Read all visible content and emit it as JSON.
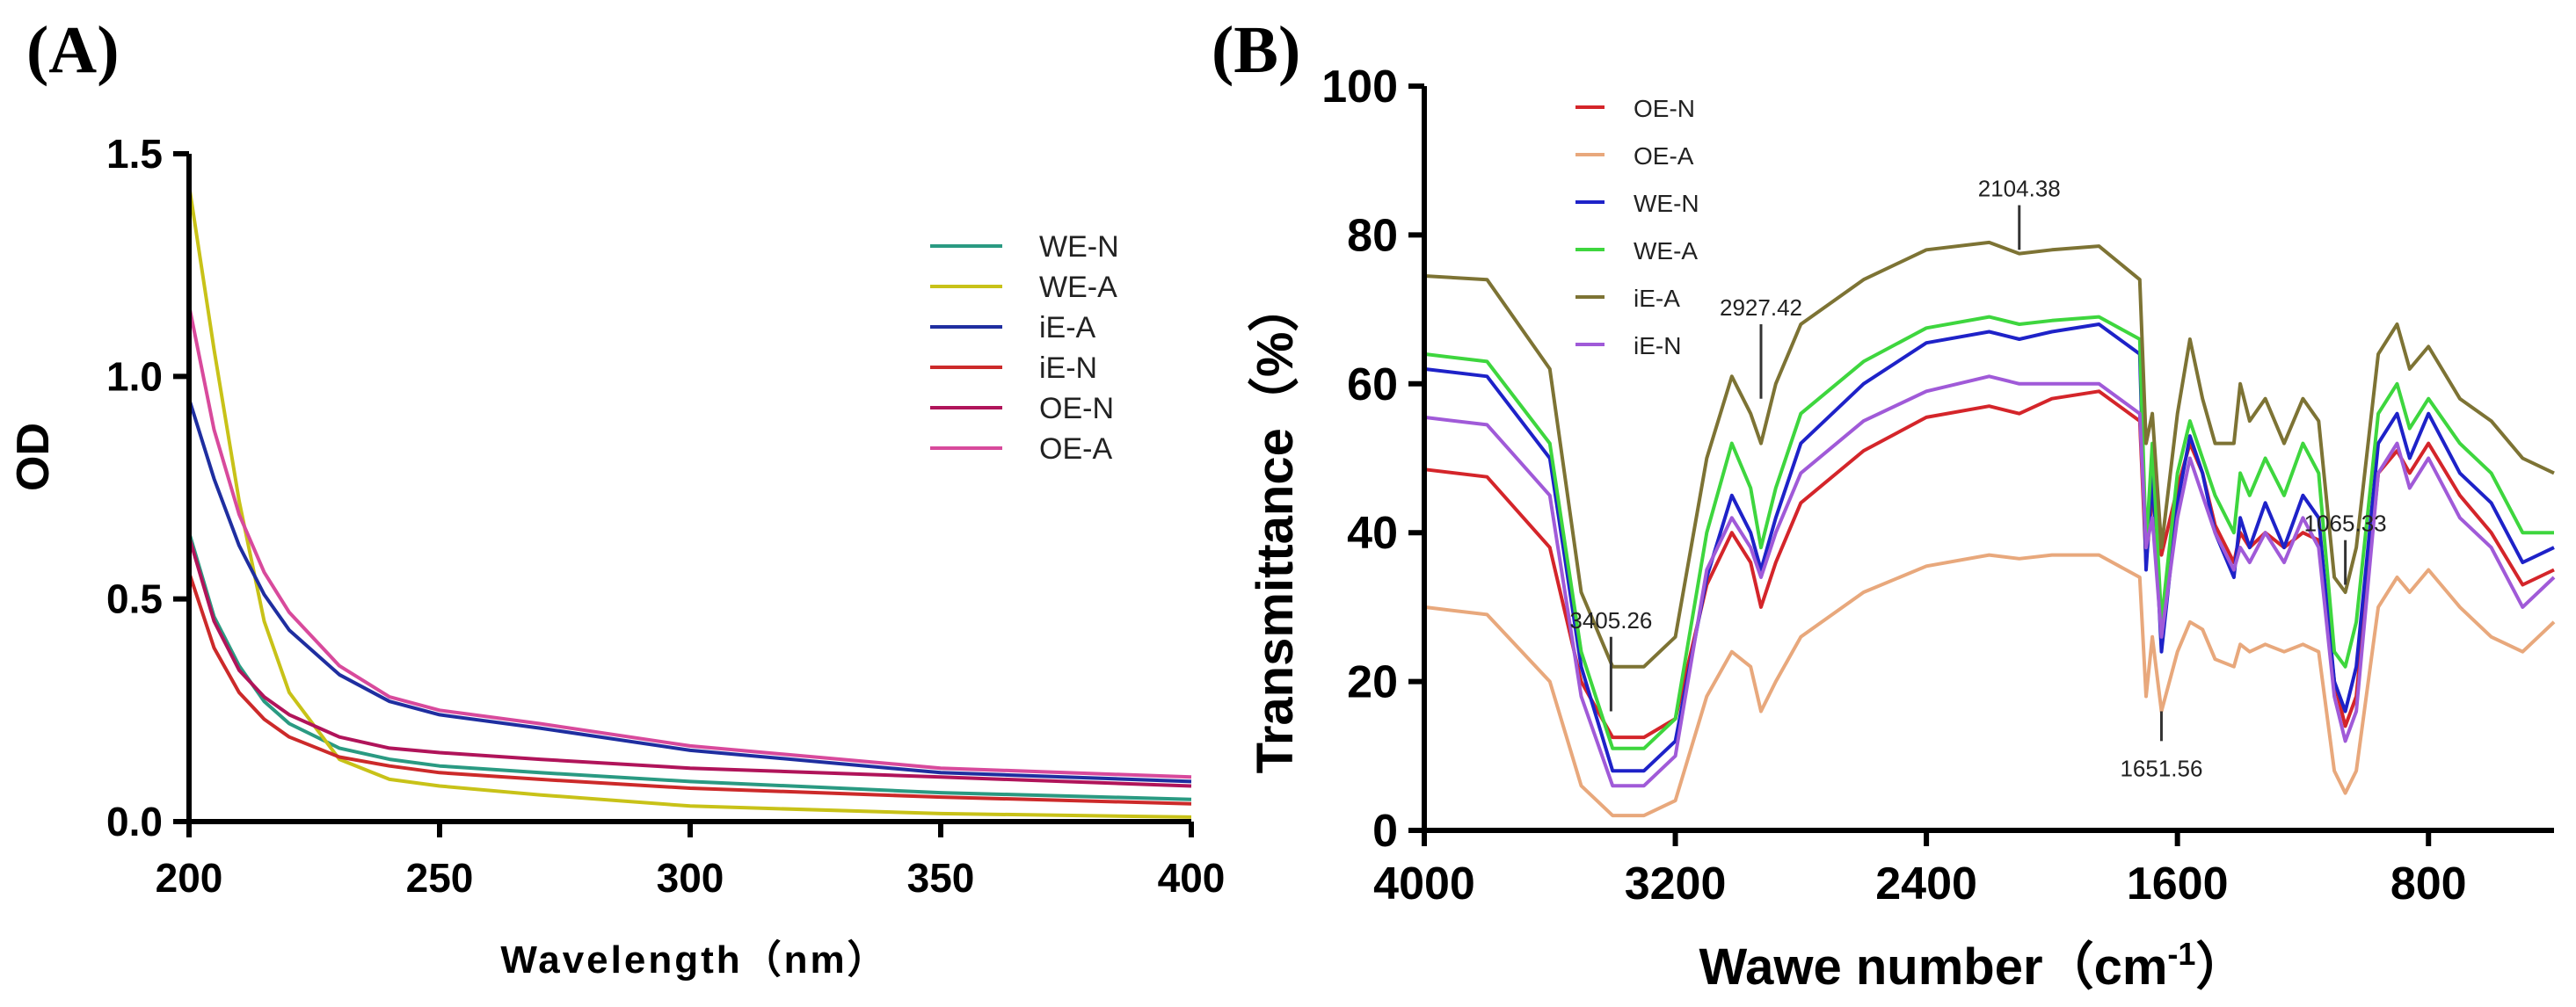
{
  "chart_data": [
    {
      "panel_label": "(A)",
      "type": "line",
      "xlabel": "Wavelength（nm）",
      "ylabel": "OD",
      "xlim": [
        200,
        400
      ],
      "ylim": [
        0,
        1.5
      ],
      "xticks": [
        "200",
        "250",
        "300",
        "350",
        "400"
      ],
      "yticks": [
        "0.0",
        "0.5",
        "1.0",
        "1.5"
      ],
      "x": [
        200,
        205,
        210,
        215,
        220,
        230,
        240,
        250,
        270,
        300,
        350,
        400
      ],
      "series": [
        {
          "name": "WE-N",
          "color": "#2a9a82",
          "values": [
            0.65,
            0.46,
            0.35,
            0.27,
            0.22,
            0.165,
            0.14,
            0.125,
            0.11,
            0.09,
            0.065,
            0.05
          ]
        },
        {
          "name": "WE-A",
          "color": "#c8c218",
          "values": [
            1.43,
            1.06,
            0.72,
            0.45,
            0.29,
            0.14,
            0.095,
            0.08,
            0.06,
            0.035,
            0.018,
            0.01
          ]
        },
        {
          "name": "iE-A",
          "color": "#1f2ea0",
          "values": [
            0.95,
            0.77,
            0.62,
            0.51,
            0.43,
            0.33,
            0.27,
            0.24,
            0.21,
            0.16,
            0.11,
            0.09
          ]
        },
        {
          "name": "iE-N",
          "color": "#cc2a2a",
          "values": [
            0.56,
            0.39,
            0.29,
            0.23,
            0.19,
            0.145,
            0.125,
            0.11,
            0.095,
            0.075,
            0.055,
            0.04
          ]
        },
        {
          "name": "OE-N",
          "color": "#b0145a",
          "values": [
            0.64,
            0.45,
            0.34,
            0.28,
            0.24,
            0.19,
            0.165,
            0.155,
            0.14,
            0.12,
            0.1,
            0.08
          ]
        },
        {
          "name": "OE-A",
          "color": "#d84a9c",
          "values": [
            1.16,
            0.88,
            0.69,
            0.56,
            0.47,
            0.35,
            0.28,
            0.25,
            0.22,
            0.17,
            0.12,
            0.1
          ]
        }
      ]
    },
    {
      "panel_label": "(B)",
      "type": "line",
      "xlabel": "Wawe number（cm",
      "xlabel_sup": "-1",
      "xlabel_end": "）",
      "ylabel": "Transmittance（%）",
      "xlim": [
        4000,
        400
      ],
      "ylim": [
        0,
        100
      ],
      "xticks": [
        "4000",
        "3200",
        "2400",
        "1600",
        "800"
      ],
      "xtick_values": [
        4000,
        3200,
        2400,
        1600,
        800
      ],
      "yticks": [
        "0",
        "20",
        "40",
        "60",
        "80",
        "100"
      ],
      "x": [
        4000,
        3800,
        3600,
        3500,
        3400,
        3300,
        3200,
        3100,
        3020,
        2960,
        2927,
        2880,
        2800,
        2600,
        2400,
        2200,
        2104,
        2000,
        1850,
        1720,
        1700,
        1680,
        1651,
        1600,
        1560,
        1520,
        1480,
        1420,
        1400,
        1370,
        1320,
        1260,
        1200,
        1150,
        1100,
        1065,
        1030,
        960,
        900,
        860,
        800,
        700,
        600,
        500,
        400
      ],
      "series": [
        {
          "name": "OE-N",
          "color": "#d4252a",
          "values": [
            48.5,
            47.5,
            38,
            20,
            12.5,
            12.5,
            15,
            33,
            40,
            36,
            30,
            36,
            44,
            51,
            55.5,
            57,
            56,
            58,
            59,
            55,
            36,
            45,
            37,
            46,
            52,
            48,
            41,
            36,
            40,
            38,
            40,
            38,
            40,
            39,
            20,
            14,
            18,
            48,
            51,
            48,
            52,
            45,
            40,
            33,
            35
          ]
        },
        {
          "name": "OE-A",
          "color": "#e8a87c",
          "values": [
            30,
            29,
            20,
            6,
            2,
            2,
            4,
            18,
            24,
            22,
            16,
            20,
            26,
            32,
            35.5,
            37,
            36.5,
            37,
            37,
            34,
            18,
            26,
            16,
            24,
            28,
            27,
            23,
            22,
            25,
            24,
            25,
            24,
            25,
            24,
            8,
            5,
            8,
            30,
            34,
            32,
            35,
            30,
            26,
            24,
            28
          ]
        },
        {
          "name": "WE-N",
          "color": "#1e22c8",
          "values": [
            62,
            61,
            50,
            22,
            8,
            8,
            12,
            34,
            45,
            40,
            35,
            42,
            52,
            60,
            65.5,
            67,
            66,
            67,
            68,
            64,
            35,
            48,
            24,
            44,
            53,
            48,
            40,
            34,
            42,
            38,
            44,
            38,
            45,
            42,
            20,
            16,
            22,
            52,
            56,
            50,
            56,
            48,
            44,
            36,
            38
          ]
        },
        {
          "name": "WE-A",
          "color": "#3ed63e",
          "values": [
            64,
            63,
            52,
            24,
            11,
            11,
            15,
            40,
            52,
            46,
            38,
            46,
            56,
            63,
            67.5,
            69,
            68,
            68.5,
            69,
            66,
            38,
            52,
            28,
            48,
            55,
            50,
            45,
            40,
            48,
            45,
            50,
            45,
            52,
            48,
            24,
            22,
            28,
            56,
            60,
            54,
            58,
            52,
            48,
            40,
            40
          ]
        },
        {
          "name": "iE-A",
          "color": "#7d7334",
          "values": [
            74.5,
            74,
            62,
            32,
            22,
            22,
            26,
            50,
            61,
            56,
            52,
            60,
            68,
            74,
            78,
            79,
            77.5,
            78,
            78.5,
            74,
            52,
            56,
            38,
            56,
            66,
            58,
            52,
            52,
            60,
            55,
            58,
            52,
            58,
            55,
            34,
            32,
            38,
            64,
            68,
            62,
            65,
            58,
            55,
            50,
            48
          ]
        },
        {
          "name": "iE-N",
          "color": "#a05ad8",
          "values": [
            55.5,
            54.5,
            45,
            18,
            6,
            6,
            10,
            35,
            42,
            38,
            34,
            40,
            48,
            55,
            59,
            61,
            60,
            60,
            60,
            56,
            38,
            42,
            26,
            42,
            50,
            45,
            40,
            35,
            38,
            36,
            40,
            36,
            42,
            38,
            18,
            12,
            16,
            48,
            52,
            46,
            50,
            42,
            38,
            30,
            34
          ]
        }
      ],
      "annotations": [
        {
          "label": "3405.26",
          "x": 3405,
          "y_top": 26,
          "y_bottom": 16
        },
        {
          "label": "2927.42",
          "x": 2927,
          "y_top": 68,
          "y_bottom": 58
        },
        {
          "label": "2104.38",
          "x": 2104,
          "y_top": 84,
          "y_bottom": 78
        },
        {
          "label": "1651.56",
          "x": 1651,
          "y_top": 16,
          "y_bottom": 12,
          "below": true
        },
        {
          "label": "1065.33",
          "x": 1065,
          "y_top": 39,
          "y_bottom": 33
        }
      ]
    }
  ]
}
